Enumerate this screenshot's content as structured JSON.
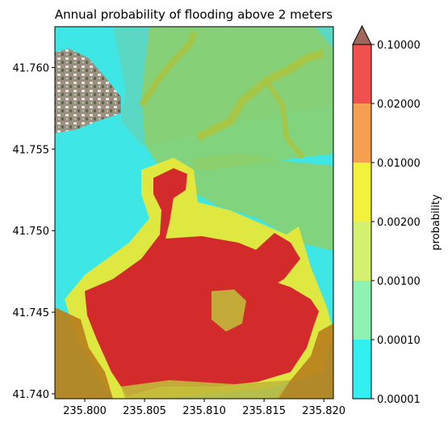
{
  "title": "Annual probability of flooding above 2 meters",
  "x_axis": {
    "ticks": [
      "235.800",
      "235.805",
      "235.810",
      "235.815",
      "235.820"
    ],
    "tick_values": [
      235.8,
      235.805,
      235.81,
      235.815,
      235.82
    ],
    "range": [
      235.7975,
      235.8208
    ]
  },
  "y_axis": {
    "ticks": [
      "41.740",
      "41.745",
      "41.750",
      "41.755",
      "41.760"
    ],
    "tick_values": [
      41.74,
      41.745,
      41.75,
      41.755,
      41.76
    ],
    "range": [
      41.7397,
      41.7625
    ]
  },
  "colorbar": {
    "label": "probability",
    "ticks": [
      "0.00001",
      "0.00010",
      "0.00100",
      "0.00200",
      "0.01000",
      "0.02000",
      "0.10000"
    ],
    "band_colors": [
      "#33f0f0",
      "#8ef2b2",
      "#d6f070",
      "#f2f23c",
      "#f4a050",
      "#f05050"
    ],
    "extend_max_color": "#a0685c"
  },
  "map_colors": {
    "cyan": "#3fe6e6",
    "teal": "#5ed6c0",
    "green": "#8ecf6a",
    "olive": "#a8c440",
    "yellow": "#e8e838",
    "red": "#d32b2b",
    "brown": "#b8841e",
    "khaki": "#c2b83a"
  }
}
